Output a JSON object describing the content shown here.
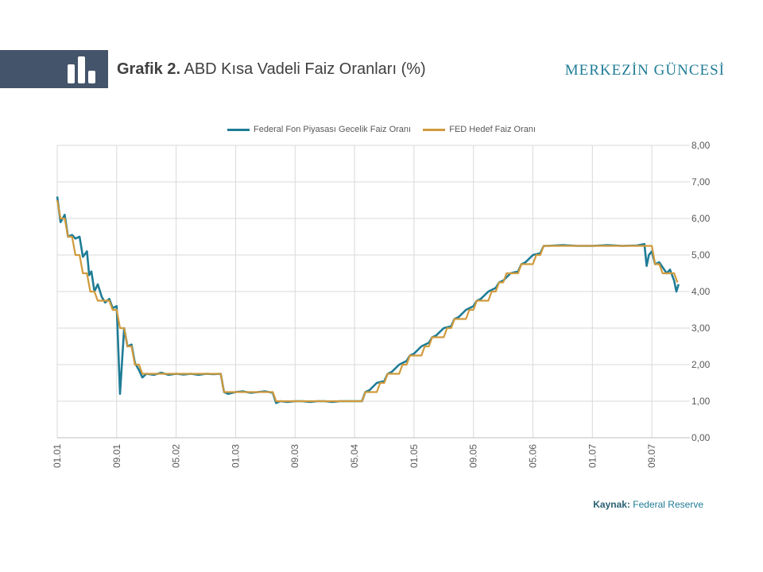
{
  "header": {
    "title_prefix": "Grafik 2.",
    "title_text": "ABD Kısa Vadeli Faiz Oranları (%)",
    "brand": "MERKEZİN GÜNCESİ",
    "icon": "bar-chart-icon"
  },
  "footer": {
    "source_label": "Kaynak:",
    "source_value": "Federal Reserve"
  },
  "colors": {
    "header_band": "#44546a",
    "series_fed_funds": "#1f7c96",
    "series_target": "#d09a3c",
    "brand": "#1f7c96"
  },
  "chart_data": {
    "type": "line",
    "title": "",
    "xlabel": "",
    "ylabel": "",
    "ylim": [
      0,
      8
    ],
    "y_ticks": [
      "0,00",
      "1,00",
      "2,00",
      "3,00",
      "4,00",
      "5,00",
      "6,00",
      "7,00",
      "8,00"
    ],
    "y_axis_side": "right",
    "x_ticks": [
      "01.01",
      "09.01",
      "05.02",
      "01.03",
      "09.03",
      "05.04",
      "01.05",
      "09.05",
      "05.06",
      "01.07",
      "09.07"
    ],
    "grid": true,
    "legend_position": "top",
    "series": [
      {
        "name": "Federal Fon Piyasası Gecelik Faiz Oranı",
        "color": "#1f7c96",
        "points": [
          [
            "01.01",
            6.6
          ],
          [
            "01.01",
            5.9
          ],
          [
            "02.01",
            6.1
          ],
          [
            "02.01",
            5.5
          ],
          [
            "03.01",
            5.55
          ],
          [
            "03.01",
            5.45
          ],
          [
            "04.01",
            5.5
          ],
          [
            "04.01",
            4.95
          ],
          [
            "05.01",
            5.1
          ],
          [
            "05.01",
            4.45
          ],
          [
            "05.01",
            4.55
          ],
          [
            "06.01",
            4.0
          ],
          [
            "06.01",
            4.2
          ],
          [
            "07.01",
            3.85
          ],
          [
            "07.01",
            3.7
          ],
          [
            "08.01",
            3.8
          ],
          [
            "08.01",
            3.55
          ],
          [
            "09.01",
            3.6
          ],
          [
            "09.01",
            1.2
          ],
          [
            "10.01",
            3.0
          ],
          [
            "10.01",
            2.5
          ],
          [
            "11.01",
            2.55
          ],
          [
            "11.01",
            2.05
          ],
          [
            "12.01",
            1.85
          ],
          [
            "12.01",
            1.65
          ],
          [
            "01.02",
            1.75
          ],
          [
            "02.02",
            1.72
          ],
          [
            "03.02",
            1.78
          ],
          [
            "04.02",
            1.72
          ],
          [
            "05.02",
            1.75
          ],
          [
            "06.02",
            1.73
          ],
          [
            "07.02",
            1.75
          ],
          [
            "08.02",
            1.72
          ],
          [
            "09.02",
            1.75
          ],
          [
            "10.02",
            1.74
          ],
          [
            "11.02",
            1.75
          ],
          [
            "11.02",
            1.25
          ],
          [
            "12.02",
            1.2
          ],
          [
            "01.03",
            1.25
          ],
          [
            "02.03",
            1.27
          ],
          [
            "03.03",
            1.23
          ],
          [
            "04.03",
            1.25
          ],
          [
            "05.03",
            1.27
          ],
          [
            "06.03",
            1.23
          ],
          [
            "06.03",
            0.95
          ],
          [
            "07.03",
            1.0
          ],
          [
            "08.03",
            0.98
          ],
          [
            "09.03",
            1.0
          ],
          [
            "10.03",
            1.0
          ],
          [
            "11.03",
            0.98
          ],
          [
            "12.03",
            1.0
          ],
          [
            "01.04",
            1.0
          ],
          [
            "02.04",
            0.98
          ],
          [
            "03.04",
            1.0
          ],
          [
            "04.04",
            1.0
          ],
          [
            "05.04",
            1.0
          ],
          [
            "06.04",
            1.0
          ],
          [
            "06.04",
            1.25
          ],
          [
            "07.04",
            1.3
          ],
          [
            "08.04",
            1.5
          ],
          [
            "09.04",
            1.55
          ],
          [
            "09.04",
            1.75
          ],
          [
            "10.04",
            1.8
          ],
          [
            "11.04",
            2.0
          ],
          [
            "12.04",
            2.1
          ],
          [
            "12.04",
            2.25
          ],
          [
            "01.05",
            2.3
          ],
          [
            "02.05",
            2.5
          ],
          [
            "03.05",
            2.6
          ],
          [
            "03.05",
            2.75
          ],
          [
            "04.05",
            2.8
          ],
          [
            "05.05",
            3.0
          ],
          [
            "06.05",
            3.05
          ],
          [
            "06.05",
            3.25
          ],
          [
            "07.05",
            3.3
          ],
          [
            "08.05",
            3.5
          ],
          [
            "09.05",
            3.6
          ],
          [
            "09.05",
            3.75
          ],
          [
            "10.05",
            3.8
          ],
          [
            "11.05",
            4.0
          ],
          [
            "12.05",
            4.1
          ],
          [
            "12.05",
            4.25
          ],
          [
            "01.06",
            4.3
          ],
          [
            "02.06",
            4.5
          ],
          [
            "03.06",
            4.55
          ],
          [
            "03.06",
            4.75
          ],
          [
            "04.06",
            4.8
          ],
          [
            "05.06",
            5.0
          ],
          [
            "06.06",
            5.05
          ],
          [
            "06.06",
            5.25
          ],
          [
            "07.06",
            5.25
          ],
          [
            "09.06",
            5.27
          ],
          [
            "11.06",
            5.25
          ],
          [
            "01.07",
            5.25
          ],
          [
            "03.07",
            5.27
          ],
          [
            "05.07",
            5.25
          ],
          [
            "07.07",
            5.26
          ],
          [
            "08.07",
            5.3
          ],
          [
            "08.07",
            4.7
          ],
          [
            "08.07",
            5.0
          ],
          [
            "09.07",
            5.1
          ],
          [
            "09.07",
            4.75
          ],
          [
            "10.07",
            4.8
          ],
          [
            "11.07",
            4.5
          ],
          [
            "11.07",
            4.6
          ],
          [
            "12.07",
            4.3
          ],
          [
            "12.07",
            4.0
          ],
          [
            "12.07",
            4.2
          ]
        ]
      },
      {
        "name": "FED Hedef Faiz Oranı",
        "color": "#d09a3c",
        "points": [
          [
            "01.01",
            6.5
          ],
          [
            "01.01",
            6.0
          ],
          [
            "02.01",
            6.0
          ],
          [
            "02.01",
            5.5
          ],
          [
            "03.01",
            5.5
          ],
          [
            "03.01",
            5.0
          ],
          [
            "04.01",
            5.0
          ],
          [
            "04.01",
            4.5
          ],
          [
            "05.01",
            4.5
          ],
          [
            "05.01",
            4.0
          ],
          [
            "06.01",
            4.0
          ],
          [
            "06.01",
            3.75
          ],
          [
            "08.01",
            3.75
          ],
          [
            "08.01",
            3.5
          ],
          [
            "09.01",
            3.5
          ],
          [
            "09.01",
            3.0
          ],
          [
            "10.01",
            3.0
          ],
          [
            "10.01",
            2.5
          ],
          [
            "11.01",
            2.5
          ],
          [
            "11.01",
            2.0
          ],
          [
            "12.01",
            2.0
          ],
          [
            "12.01",
            1.75
          ],
          [
            "11.02",
            1.75
          ],
          [
            "11.02",
            1.25
          ],
          [
            "06.03",
            1.25
          ],
          [
            "06.03",
            1.0
          ],
          [
            "06.04",
            1.0
          ],
          [
            "06.04",
            1.25
          ],
          [
            "08.04",
            1.25
          ],
          [
            "08.04",
            1.5
          ],
          [
            "09.04",
            1.5
          ],
          [
            "09.04",
            1.75
          ],
          [
            "11.04",
            1.75
          ],
          [
            "11.04",
            2.0
          ],
          [
            "12.04",
            2.0
          ],
          [
            "12.04",
            2.25
          ],
          [
            "02.05",
            2.25
          ],
          [
            "02.05",
            2.5
          ],
          [
            "03.05",
            2.5
          ],
          [
            "03.05",
            2.75
          ],
          [
            "05.05",
            2.75
          ],
          [
            "05.05",
            3.0
          ],
          [
            "06.05",
            3.0
          ],
          [
            "06.05",
            3.25
          ],
          [
            "08.05",
            3.25
          ],
          [
            "08.05",
            3.5
          ],
          [
            "09.05",
            3.5
          ],
          [
            "09.05",
            3.75
          ],
          [
            "11.05",
            3.75
          ],
          [
            "11.05",
            4.0
          ],
          [
            "12.05",
            4.0
          ],
          [
            "12.05",
            4.25
          ],
          [
            "01.06",
            4.25
          ],
          [
            "01.06",
            4.5
          ],
          [
            "03.06",
            4.5
          ],
          [
            "03.06",
            4.75
          ],
          [
            "05.06",
            4.75
          ],
          [
            "05.06",
            5.0
          ],
          [
            "06.06",
            5.0
          ],
          [
            "06.06",
            5.25
          ],
          [
            "09.07",
            5.25
          ],
          [
            "09.07",
            4.75
          ],
          [
            "10.07",
            4.75
          ],
          [
            "10.07",
            4.5
          ],
          [
            "12.07",
            4.5
          ],
          [
            "12.07",
            4.25
          ]
        ]
      }
    ]
  }
}
